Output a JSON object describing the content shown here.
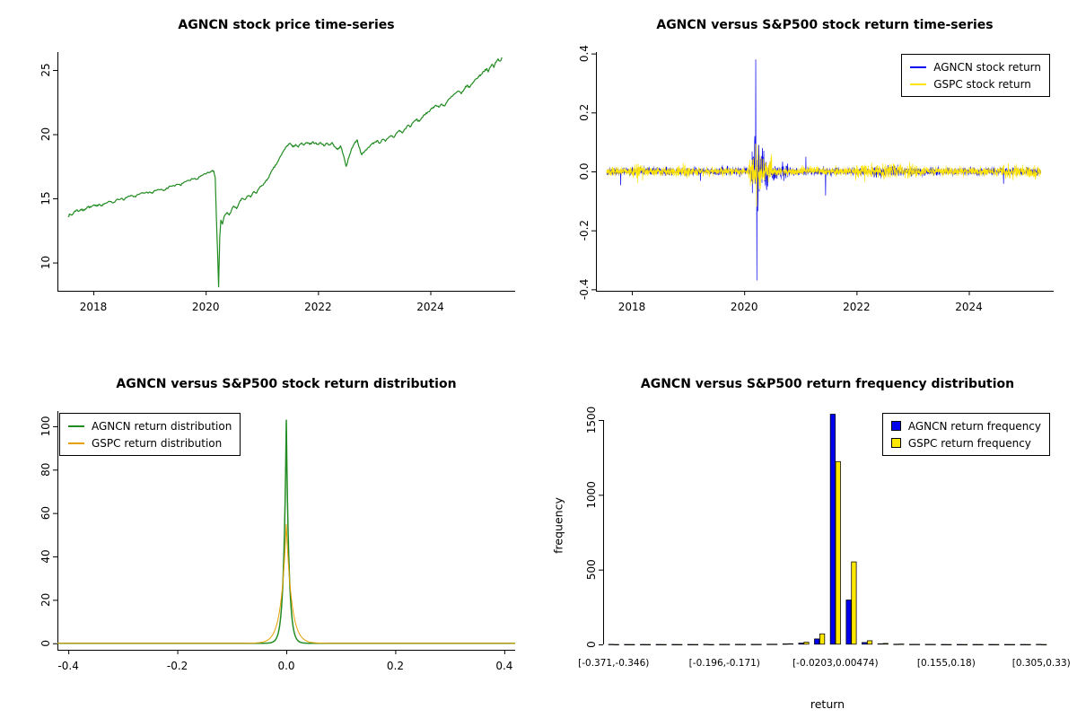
{
  "page": {
    "background": "#FFFFFF"
  },
  "chart_data": [
    {
      "id": "price",
      "type": "line",
      "title": "AGNCN stock price time-series",
      "xlabel": "",
      "ylabel": "",
      "xlim": [
        2017.36,
        2025.51
      ],
      "ylim": [
        7.8,
        26.4
      ],
      "xticks": {
        "values": [
          2018,
          2020,
          2022,
          2024
        ],
        "labels": [
          "2018",
          "2020",
          "2022",
          "2024"
        ]
      },
      "yticks": {
        "values": [
          10,
          15,
          20,
          25
        ],
        "labels": [
          "10",
          "15",
          "20",
          "25"
        ]
      },
      "grid": false,
      "series": [
        {
          "name": "AGNCN price",
          "color": "#228B22",
          "points": [
            [
              2017.55,
              13.6
            ],
            [
              2017.58,
              13.75
            ],
            [
              2017.62,
              13.7
            ],
            [
              2017.66,
              13.95
            ],
            [
              2017.7,
              14.1
            ],
            [
              2017.74,
              14.0
            ],
            [
              2017.78,
              14.15
            ],
            [
              2017.82,
              14.05
            ],
            [
              2017.86,
              14.2
            ],
            [
              2017.9,
              14.35
            ],
            [
              2017.95,
              14.3
            ],
            [
              2018.0,
              14.45
            ],
            [
              2018.05,
              14.4
            ],
            [
              2018.1,
              14.55
            ],
            [
              2018.15,
              14.45
            ],
            [
              2018.2,
              14.6
            ],
            [
              2018.3,
              14.75
            ],
            [
              2018.35,
              14.65
            ],
            [
              2018.4,
              14.85
            ],
            [
              2018.5,
              15.0
            ],
            [
              2018.55,
              14.9
            ],
            [
              2018.6,
              15.1
            ],
            [
              2018.7,
              15.2
            ],
            [
              2018.75,
              15.1
            ],
            [
              2018.8,
              15.3
            ],
            [
              2018.9,
              15.4
            ],
            [
              2019.0,
              15.5
            ],
            [
              2019.05,
              15.4
            ],
            [
              2019.1,
              15.6
            ],
            [
              2019.2,
              15.7
            ],
            [
              2019.25,
              15.6
            ],
            [
              2019.3,
              15.8
            ],
            [
              2019.4,
              15.95
            ],
            [
              2019.5,
              16.1
            ],
            [
              2019.55,
              16.0
            ],
            [
              2019.6,
              16.2
            ],
            [
              2019.7,
              16.4
            ],
            [
              2019.8,
              16.55
            ],
            [
              2019.85,
              16.5
            ],
            [
              2019.9,
              16.7
            ],
            [
              2020.0,
              16.9
            ],
            [
              2020.05,
              17.0
            ],
            [
              2020.1,
              17.1
            ],
            [
              2020.14,
              17.15
            ],
            [
              2020.17,
              16.6
            ],
            [
              2020.19,
              13.5
            ],
            [
              2020.21,
              11.0
            ],
            [
              2020.23,
              8.1
            ],
            [
              2020.25,
              12.0
            ],
            [
              2020.27,
              13.3
            ],
            [
              2020.3,
              13.0
            ],
            [
              2020.33,
              13.6
            ],
            [
              2020.38,
              13.9
            ],
            [
              2020.42,
              13.7
            ],
            [
              2020.46,
              14.1
            ],
            [
              2020.5,
              14.4
            ],
            [
              2020.55,
              14.2
            ],
            [
              2020.6,
              14.7
            ],
            [
              2020.65,
              15.0
            ],
            [
              2020.7,
              14.9
            ],
            [
              2020.75,
              15.2
            ],
            [
              2020.8,
              15.1
            ],
            [
              2020.85,
              15.5
            ],
            [
              2020.9,
              15.4
            ],
            [
              2020.95,
              15.8
            ],
            [
              2021.0,
              16.0
            ],
            [
              2021.05,
              16.2
            ],
            [
              2021.1,
              16.5
            ],
            [
              2021.15,
              16.9
            ],
            [
              2021.2,
              17.3
            ],
            [
              2021.25,
              17.6
            ],
            [
              2021.3,
              18.0
            ],
            [
              2021.35,
              18.4
            ],
            [
              2021.4,
              18.8
            ],
            [
              2021.45,
              19.1
            ],
            [
              2021.5,
              19.3
            ],
            [
              2021.55,
              19.0
            ],
            [
              2021.6,
              19.2
            ],
            [
              2021.65,
              19.0
            ],
            [
              2021.7,
              19.3
            ],
            [
              2021.75,
              19.15
            ],
            [
              2021.8,
              19.35
            ],
            [
              2021.85,
              19.2
            ],
            [
              2021.9,
              19.4
            ],
            [
              2021.95,
              19.3
            ],
            [
              2022.0,
              19.2
            ],
            [
              2022.05,
              19.35
            ],
            [
              2022.1,
              19.1
            ],
            [
              2022.15,
              19.3
            ],
            [
              2022.2,
              19.15
            ],
            [
              2022.25,
              19.35
            ],
            [
              2022.3,
              19.0
            ],
            [
              2022.35,
              18.8
            ],
            [
              2022.4,
              19.1
            ],
            [
              2022.45,
              18.4
            ],
            [
              2022.5,
              17.5
            ],
            [
              2022.55,
              18.2
            ],
            [
              2022.6,
              18.9
            ],
            [
              2022.65,
              19.3
            ],
            [
              2022.7,
              19.55
            ],
            [
              2022.73,
              19.0
            ],
            [
              2022.78,
              18.4
            ],
            [
              2022.82,
              18.6
            ],
            [
              2022.88,
              18.9
            ],
            [
              2022.95,
              19.2
            ],
            [
              2023.0,
              19.35
            ],
            [
              2023.05,
              19.5
            ],
            [
              2023.1,
              19.3
            ],
            [
              2023.15,
              19.6
            ],
            [
              2023.2,
              19.45
            ],
            [
              2023.25,
              19.7
            ],
            [
              2023.3,
              19.9
            ],
            [
              2023.35,
              19.75
            ],
            [
              2023.4,
              20.1
            ],
            [
              2023.45,
              20.3
            ],
            [
              2023.5,
              20.1
            ],
            [
              2023.55,
              20.4
            ],
            [
              2023.6,
              20.7
            ],
            [
              2023.65,
              20.6
            ],
            [
              2023.7,
              20.95
            ],
            [
              2023.75,
              21.15
            ],
            [
              2023.8,
              21.0
            ],
            [
              2023.85,
              21.3
            ],
            [
              2023.9,
              21.5
            ],
            [
              2023.95,
              21.7
            ],
            [
              2024.0,
              21.9
            ],
            [
              2024.05,
              22.1
            ],
            [
              2024.1,
              22.25
            ],
            [
              2024.15,
              22.1
            ],
            [
              2024.2,
              22.35
            ],
            [
              2024.25,
              22.2
            ],
            [
              2024.3,
              22.55
            ],
            [
              2024.35,
              22.8
            ],
            [
              2024.4,
              23.0
            ],
            [
              2024.45,
              23.2
            ],
            [
              2024.5,
              23.35
            ],
            [
              2024.55,
              23.15
            ],
            [
              2024.6,
              23.5
            ],
            [
              2024.65,
              23.8
            ],
            [
              2024.7,
              23.65
            ],
            [
              2024.75,
              24.0
            ],
            [
              2024.8,
              24.25
            ],
            [
              2024.85,
              24.45
            ],
            [
              2024.9,
              24.65
            ],
            [
              2024.95,
              24.9
            ],
            [
              2025.0,
              25.1
            ],
            [
              2025.03,
              24.85
            ],
            [
              2025.06,
              25.2
            ],
            [
              2025.1,
              25.45
            ],
            [
              2025.13,
              25.2
            ],
            [
              2025.16,
              25.6
            ],
            [
              2025.2,
              25.85
            ],
            [
              2025.24,
              25.7
            ],
            [
              2025.28,
              25.95
            ]
          ]
        }
      ]
    },
    {
      "id": "returns",
      "type": "line",
      "title": "AGNCN versus S&P500 stock return time-series",
      "xlabel": "",
      "ylabel": "",
      "xlim": [
        2017.36,
        2025.51
      ],
      "ylim": [
        -0.405,
        0.405
      ],
      "xticks": {
        "values": [
          2018,
          2020,
          2022,
          2024
        ],
        "labels": [
          "2018",
          "2020",
          "2022",
          "2024"
        ]
      },
      "yticks": {
        "values": [
          -0.4,
          -0.2,
          0.0,
          0.2,
          0.4
        ],
        "labels": [
          "-0.4",
          "-0.2",
          "0.0",
          "0.2",
          "0.4"
        ]
      },
      "grid": false,
      "legend": {
        "position": "top-right",
        "items": [
          {
            "label": "AGNCN stock return",
            "color": "#0000EE"
          },
          {
            "label": "GSPC stock return",
            "color": "#FFE400"
          }
        ]
      },
      "series": [
        {
          "name": "AGNCN stock return",
          "color": "#0000EE",
          "n": 1940,
          "t_start": 2017.55,
          "t_end": 2025.28,
          "base_sd": 0.0055,
          "vol_windows": [
            [
              2020.12,
              2020.42,
              0.034
            ],
            [
              2020.42,
              2020.78,
              0.013
            ],
            [
              2022.25,
              2022.75,
              0.009
            ]
          ],
          "spikes": [
            [
              2020.205,
              0.38
            ],
            [
              2020.225,
              -0.37
            ],
            [
              2020.19,
              0.12
            ],
            [
              2020.245,
              -0.135
            ],
            [
              2020.26,
              0.09
            ],
            [
              2021.45,
              -0.082
            ],
            [
              2017.8,
              -0.047
            ],
            [
              2019.22,
              -0.032
            ],
            [
              2024.62,
              -0.042
            ],
            [
              2021.1,
              0.05
            ]
          ],
          "max_value": 0.38,
          "min_value": -0.37
        },
        {
          "name": "GSPC stock return",
          "color": "#FFE400",
          "n": 1940,
          "t_start": 2017.55,
          "t_end": 2025.28,
          "base_sd": 0.0065,
          "vol_windows": [
            [
              2020.08,
              2020.5,
              0.026
            ],
            [
              2018.02,
              2018.2,
              0.011
            ],
            [
              2018.72,
              2019.02,
              0.011
            ],
            [
              2021.98,
              2023.08,
              0.0125
            ],
            [
              2024.55,
              2025.28,
              0.0105
            ]
          ],
          "spikes": [
            [
              2020.2,
              0.094
            ],
            [
              2020.22,
              -0.12
            ],
            [
              2020.24,
              0.09
            ],
            [
              2020.27,
              -0.06
            ],
            [
              2018.1,
              -0.041
            ],
            [
              2025.18,
              -0.028
            ]
          ],
          "max_value": 0.094,
          "min_value": -0.12
        }
      ]
    },
    {
      "id": "density",
      "type": "area",
      "title": "AGNCN versus S&P500 stock return distribution",
      "xlabel": "",
      "ylabel": "",
      "xlim": [
        -0.42,
        0.42
      ],
      "ylim": [
        -3,
        107
      ],
      "xticks": {
        "values": [
          -0.4,
          -0.2,
          0.0,
          0.2,
          0.4
        ],
        "labels": [
          "-0.4",
          "-0.2",
          "0.0",
          "0.2",
          "0.4"
        ]
      },
      "yticks": {
        "values": [
          0,
          20,
          40,
          60,
          80,
          100
        ],
        "labels": [
          "0",
          "20",
          "40",
          "60",
          "80",
          "100"
        ]
      },
      "grid": false,
      "legend": {
        "position": "top-left",
        "items": [
          {
            "label": "AGNCN return distribution",
            "color": "#228B22"
          },
          {
            "label": "GSPC return distribution",
            "color": "#E69F00"
          }
        ]
      },
      "series": [
        {
          "name": "AGNCN return distribution",
          "color": "#228B22",
          "peak_height": 103,
          "peak_center": 0.0,
          "laplace_scale": 0.0048
        },
        {
          "name": "GSPC return distribution",
          "color": "#E69F00",
          "peak_height": 55,
          "peak_center": 0.0,
          "laplace_scale": 0.0095
        }
      ]
    },
    {
      "id": "frequency",
      "type": "bar",
      "title": "AGNCN versus S&P500 return frequency distribution",
      "xlabel": "return",
      "ylabel": "frequency",
      "bins": 28,
      "yticks": {
        "values": [
          0,
          500,
          1000,
          1500
        ],
        "labels": [
          "0",
          "500",
          "1000",
          "1500"
        ]
      },
      "ylim_draw": [
        0,
        1560
      ],
      "xtick_indices": [
        0,
        7,
        14,
        21,
        27
      ],
      "xtick_labels": [
        "[-0.371,-0.346)",
        "[-0.196,-0.171)",
        "[-0.0203,0.00474)",
        "[0.155,0.18)",
        "[0.305,0.33)"
      ],
      "grid": false,
      "legend": {
        "position": "top-right",
        "items": [
          {
            "label": "AGNCN return frequency",
            "color": "#0000EE"
          },
          {
            "label": "GSPC return frequency",
            "color": "#FFE800"
          }
        ]
      },
      "series": [
        {
          "name": "AGNCN return frequency",
          "color": "#0000EE",
          "values": [
            2,
            1,
            1,
            1,
            1,
            1,
            2,
            2,
            2,
            2,
            3,
            5,
            10,
            38,
            1540,
            298,
            14,
            6,
            3,
            2,
            2,
            1,
            1,
            1,
            1,
            1,
            1,
            2
          ]
        },
        {
          "name": "GSPC return frequency",
          "color": "#FFE800",
          "values": [
            1,
            1,
            1,
            1,
            1,
            1,
            1,
            2,
            2,
            2,
            3,
            6,
            16,
            72,
            1224,
            553,
            26,
            8,
            4,
            2,
            2,
            1,
            1,
            1,
            1,
            1,
            1,
            1
          ]
        }
      ]
    }
  ]
}
